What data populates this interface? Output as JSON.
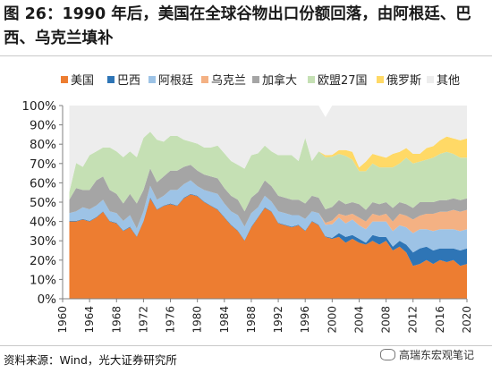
{
  "title": "图 26：1990 年后，美国在全球谷物出口份额回落，由阿根廷、巴西、乌克兰填补",
  "source": "资料来源：Wind，光大证券研究所",
  "watermark": "高瑞东宏观笔记",
  "chart_data": {
    "type": "area",
    "stacked": true,
    "legend_position": "top",
    "x": [
      1961,
      1962,
      1963,
      1964,
      1965,
      1966,
      1967,
      1968,
      1969,
      1970,
      1971,
      1972,
      1973,
      1974,
      1975,
      1976,
      1977,
      1978,
      1979,
      1980,
      1981,
      1982,
      1983,
      1984,
      1985,
      1986,
      1987,
      1988,
      1989,
      1990,
      1991,
      1992,
      1993,
      1994,
      1995,
      1996,
      1997,
      1998,
      1999,
      2000,
      2001,
      2002,
      2003,
      2004,
      2005,
      2006,
      2007,
      2008,
      2009,
      2010,
      2011,
      2012,
      2013,
      2014,
      2015,
      2016,
      2017,
      2018,
      2019,
      2020
    ],
    "x_ticks": [
      1960,
      1964,
      1968,
      1972,
      1976,
      1980,
      1984,
      1988,
      1992,
      1996,
      2000,
      2004,
      2008,
      2012,
      2016,
      2020
    ],
    "y_ticks": [
      "0%",
      "10%",
      "20%",
      "30%",
      "40%",
      "50%",
      "60%",
      "70%",
      "80%",
      "90%",
      "100%"
    ],
    "ylim": [
      0,
      100
    ],
    "grid": false,
    "series": [
      {
        "name": "美国",
        "color": "#ed7d31",
        "values": [
          40,
          40,
          41,
          40,
          42,
          45,
          40,
          39,
          35,
          37,
          32,
          40,
          52,
          46,
          48,
          49,
          48,
          52,
          54,
          53,
          50,
          48,
          46,
          42,
          38,
          35,
          30,
          37,
          42,
          47,
          45,
          39,
          38,
          37,
          38,
          35,
          40,
          38,
          32,
          31,
          32,
          29,
          31,
          29,
          28,
          30,
          28,
          30,
          25,
          27,
          24,
          17,
          18,
          20,
          18,
          20,
          19,
          20,
          17,
          18
        ]
      },
      {
        "name": "巴西",
        "color": "#2e75b6",
        "values": [
          0.3,
          0.3,
          0.3,
          0.3,
          0.3,
          0.3,
          0.3,
          0.3,
          0.3,
          0.3,
          0.3,
          0.3,
          0.5,
          0.3,
          0.3,
          0.3,
          0.3,
          0.3,
          0.3,
          0.3,
          0.3,
          0.3,
          0.3,
          0.3,
          0.3,
          0.3,
          0.3,
          0.3,
          0.3,
          0.3,
          0.3,
          0.3,
          0.3,
          0.3,
          0.3,
          0.3,
          0.3,
          0.3,
          0.3,
          0.5,
          2,
          3,
          2,
          2,
          1,
          3,
          4,
          2,
          2,
          3,
          4,
          7,
          8,
          7,
          7,
          6,
          7,
          6,
          8,
          8
        ]
      },
      {
        "name": "阿根廷",
        "color": "#9dc3e6",
        "values": [
          4,
          5,
          6,
          6,
          6,
          6,
          5,
          5,
          5,
          6,
          4,
          5,
          6,
          5,
          5,
          7,
          8,
          7,
          7,
          5,
          6,
          7,
          8,
          7,
          7,
          8,
          7,
          7,
          5,
          6,
          5,
          6,
          6,
          6,
          5,
          6,
          5,
          6,
          6,
          7,
          8,
          7,
          8,
          7,
          7,
          7,
          8,
          8,
          8,
          8,
          9,
          10,
          10,
          9,
          10,
          10,
          10,
          10,
          10,
          10
        ]
      },
      {
        "name": "乌克兰",
        "color": "#f4b183",
        "values": [
          0,
          0,
          0,
          0,
          0,
          0,
          0,
          0,
          0,
          0,
          0,
          0,
          0,
          0,
          0,
          0,
          0,
          0,
          0,
          0,
          0,
          0,
          0,
          0,
          0,
          0,
          0,
          0,
          0,
          0,
          0,
          0,
          0,
          0,
          0,
          0,
          0,
          0,
          1,
          2,
          2,
          4,
          3,
          4,
          4,
          4,
          3,
          4,
          5,
          6,
          6,
          7,
          7,
          8,
          9,
          9,
          9,
          10,
          10,
          10
        ]
      },
      {
        "name": "加拿大",
        "color": "#a5a5a5",
        "values": [
          7,
          12,
          9,
          10,
          13,
          12,
          11,
          10,
          9,
          11,
          13,
          11,
          9,
          9,
          10,
          10,
          10,
          9,
          8,
          8,
          8,
          8,
          8,
          8,
          8,
          8,
          8,
          8,
          8,
          8,
          8,
          8,
          8,
          8,
          8,
          8,
          8,
          8,
          7,
          7,
          7,
          6,
          6,
          7,
          6,
          6,
          6,
          6,
          7,
          6,
          6,
          6,
          7,
          6,
          6,
          6,
          6,
          6,
          6,
          6
        ]
      },
      {
        "name": "欧盟27国",
        "color": "#c5e0b4",
        "values": [
          4,
          13,
          12,
          18,
          15,
          15,
          22,
          22,
          24,
          22,
          24,
          27,
          19,
          22,
          18,
          18,
          18,
          14,
          12,
          14,
          14,
          15,
          17,
          18,
          18,
          18,
          22,
          22,
          20,
          18,
          18,
          21,
          22,
          23,
          20,
          34,
          18,
          24,
          27,
          26,
          24,
          25,
          22,
          17,
          20,
          20,
          19,
          18,
          21,
          20,
          24,
          23,
          21,
          22,
          23,
          24,
          25,
          23,
          22,
          21
        ]
      },
      {
        "name": "俄罗斯",
        "color": "#ffd966",
        "values": [
          0,
          0,
          0,
          0,
          0,
          0,
          0,
          0,
          0,
          0,
          0,
          0,
          0,
          0,
          0,
          0,
          0,
          0,
          0,
          0,
          0,
          0,
          0,
          0,
          0,
          0,
          0,
          0,
          0,
          0,
          0,
          0,
          0,
          0,
          0,
          0,
          0,
          0,
          1,
          1,
          2,
          3,
          4,
          2,
          5,
          5,
          6,
          5,
          7,
          6,
          5,
          5,
          4,
          6,
          6,
          7,
          8,
          8,
          9,
          10
        ]
      },
      {
        "name": "其他",
        "color": "#ededed",
        "values": [
          44.7,
          29.7,
          31.7,
          25.7,
          23.7,
          21.7,
          21.7,
          23.7,
          26.7,
          23.7,
          26.7,
          16.7,
          13.5,
          17.7,
          18.7,
          15.7,
          15.7,
          17.7,
          18.7,
          19.7,
          21.7,
          21.7,
          20.7,
          24.7,
          28.7,
          30.7,
          32.7,
          25.7,
          24.7,
          20.7,
          23.7,
          25.7,
          25.7,
          25.7,
          28.7,
          16.7,
          28.7,
          23.7,
          19.7,
          25.5,
          23,
          23,
          24,
          32,
          29,
          25,
          26,
          27,
          25,
          24,
          22,
          25,
          25,
          22,
          21,
          18,
          16,
          17,
          18,
          17
        ]
      }
    ]
  }
}
